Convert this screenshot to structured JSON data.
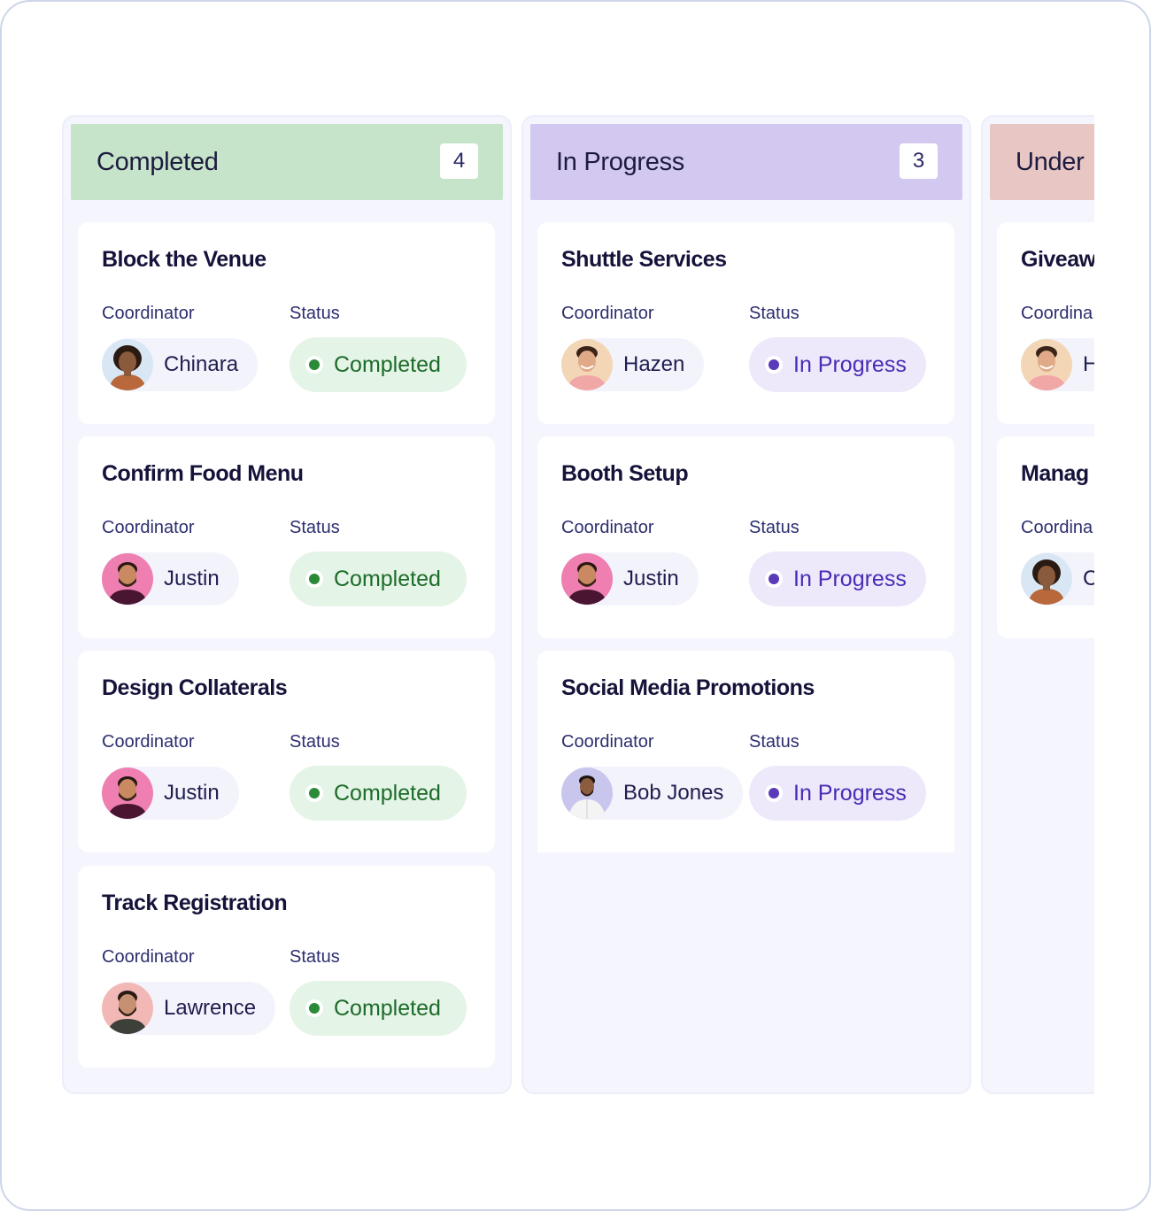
{
  "labels": {
    "coordinator": "Coordinator",
    "status": "Status"
  },
  "colors": {
    "completed_header": "#c6e4c9",
    "in_progress_header": "#d3c9f0",
    "under_review_header": "#e8c6c4",
    "completed_dot": "#2a8a37",
    "in_progress_dot": "#5a3ab8"
  },
  "columns": [
    {
      "title": "Completed",
      "count": "4",
      "cards": [
        {
          "title": "Block the Venue",
          "coordinator": "Chinara",
          "avatar": "woman-curly-avatar",
          "status": "Completed"
        },
        {
          "title": "Confirm Food Menu",
          "coordinator": "Justin",
          "avatar": "man-pink-avatar",
          "status": "Completed"
        },
        {
          "title": "Design Collaterals",
          "coordinator": "Justin",
          "avatar": "man-pink-avatar",
          "status": "Completed"
        },
        {
          "title": "Track Registration",
          "coordinator": "Lawrence",
          "avatar": "man-beard-avatar",
          "status": "Completed"
        }
      ]
    },
    {
      "title": "In Progress",
      "count": "3",
      "cards": [
        {
          "title": "Shuttle Services",
          "coordinator": "Hazen",
          "avatar": "man-smile-avatar",
          "status": "In Progress"
        },
        {
          "title": "Booth Setup",
          "coordinator": "Justin",
          "avatar": "man-pink-avatar",
          "status": "In Progress"
        },
        {
          "title": "Social Media Promotions",
          "coordinator": "Bob Jones",
          "avatar": "man-shirt-avatar",
          "status": "In Progress"
        }
      ]
    },
    {
      "title": "Under",
      "cards": [
        {
          "title": "Giveaw",
          "coordinator_label": "Coordina",
          "coordinator": "H",
          "avatar": "man-smile-avatar"
        },
        {
          "title": "Manag",
          "coordinator_label": "Coordina",
          "coordinator": "C",
          "avatar": "woman-curly-avatar"
        }
      ]
    }
  ]
}
